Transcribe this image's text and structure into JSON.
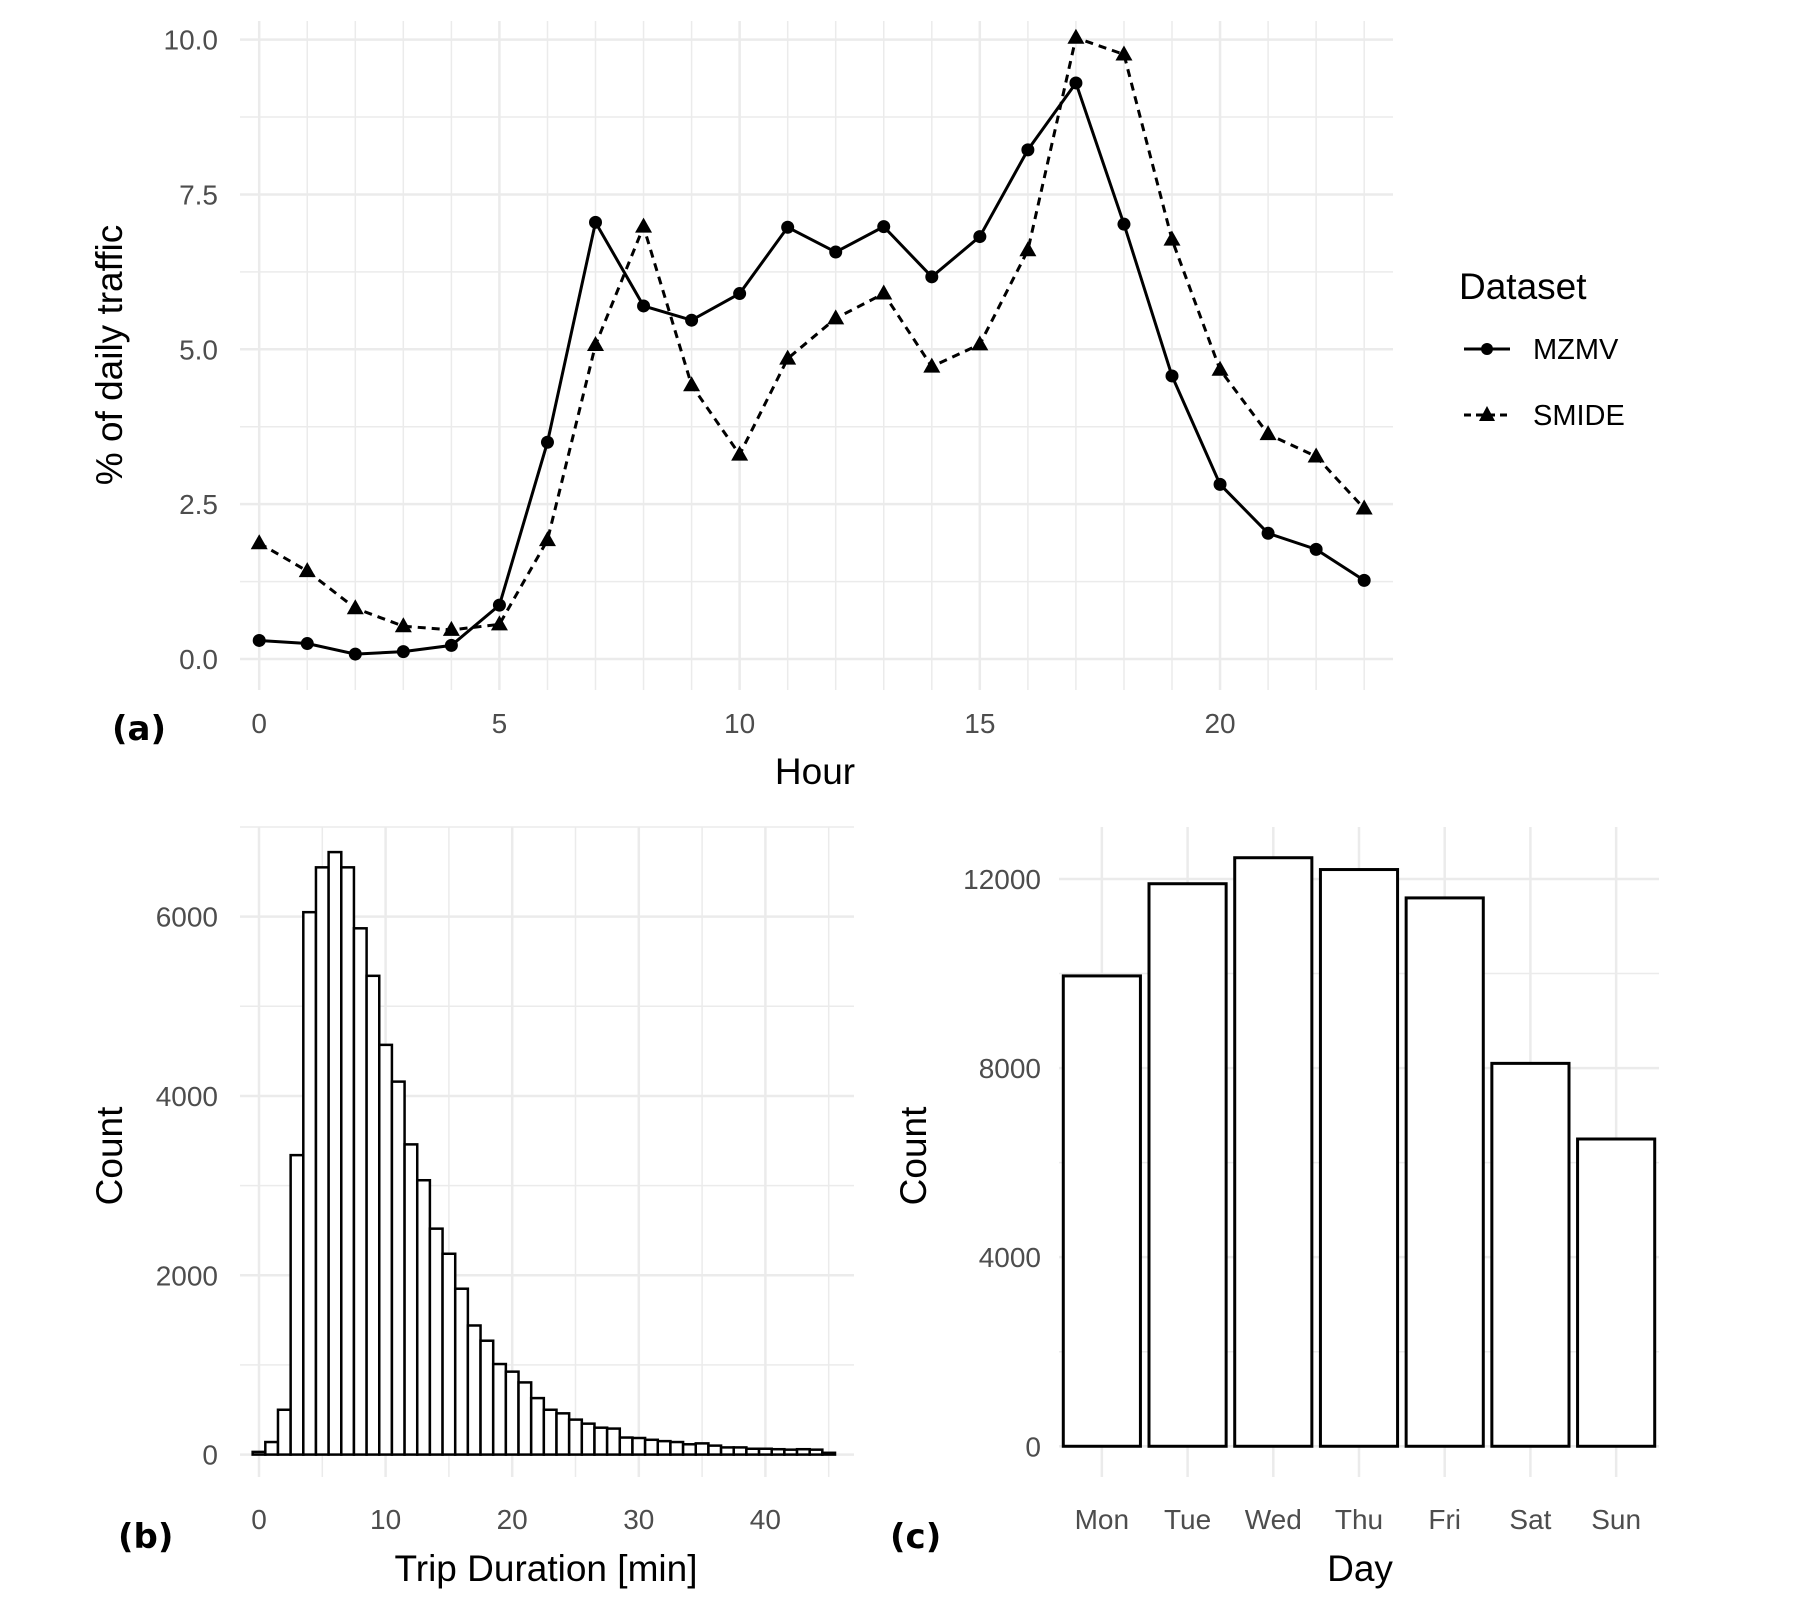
{
  "chart_data": [
    {
      "panel_label": "(a)",
      "type": "line",
      "xlabel": "Hour",
      "ylabel": "% of daily traffic",
      "x": [
        0,
        1,
        2,
        3,
        4,
        5,
        6,
        7,
        8,
        9,
        10,
        11,
        12,
        13,
        14,
        15,
        16,
        17,
        18,
        19,
        20,
        21,
        22,
        23
      ],
      "xlim": [
        -0.4,
        23.6
      ],
      "ylim": [
        -0.5,
        10.3
      ],
      "xticks": [
        "0",
        "5",
        "10",
        "15",
        "20"
      ],
      "xtick_values": [
        0,
        5,
        10,
        15,
        20
      ],
      "yticks": [
        "0.0",
        "2.5",
        "5.0",
        "7.5",
        "10.0"
      ],
      "ytick_values": [
        0,
        2.5,
        5,
        7.5,
        10
      ],
      "grid": true,
      "legend": {
        "title": "Dataset",
        "placement": "right"
      },
      "series": [
        {
          "name": "MZMV",
          "line": "solid",
          "marker": "circle",
          "values": [
            0.3,
            0.25,
            0.08,
            0.12,
            0.22,
            0.87,
            3.5,
            7.05,
            5.7,
            5.47,
            5.9,
            6.97,
            6.57,
            6.98,
            6.17,
            6.82,
            8.22,
            9.3,
            7.02,
            4.57,
            2.82,
            2.03,
            1.77,
            1.27
          ]
        },
        {
          "name": "SMIDE",
          "line": "dashed",
          "marker": "triangle",
          "values": [
            1.87,
            1.42,
            0.82,
            0.53,
            0.47,
            0.56,
            1.92,
            5.07,
            6.98,
            4.42,
            3.3,
            4.85,
            5.5,
            5.9,
            4.72,
            5.08,
            6.6,
            10.03,
            9.76,
            6.77,
            4.67,
            3.63,
            3.27,
            2.43
          ]
        }
      ]
    },
    {
      "panel_label": "(b)",
      "type": "bar",
      "subtype": "histogram",
      "xlabel": "Trip Duration [min]",
      "ylabel": "Count",
      "bin_width": 1,
      "bin_centers": [
        0,
        1,
        2,
        3,
        4,
        5,
        6,
        7,
        8,
        9,
        10,
        11,
        12,
        13,
        14,
        15,
        16,
        17,
        18,
        19,
        20,
        21,
        22,
        23,
        24,
        25,
        26,
        27,
        28,
        29,
        30,
        31,
        32,
        33,
        34,
        35,
        36,
        37,
        38,
        39,
        40,
        41,
        42,
        43,
        44,
        45
      ],
      "values": [
        30,
        140,
        500,
        3340,
        6050,
        6550,
        6720,
        6550,
        5870,
        5340,
        4570,
        4160,
        3460,
        3060,
        2520,
        2240,
        1850,
        1440,
        1270,
        1010,
        925,
        805,
        630,
        500,
        460,
        390,
        345,
        300,
        290,
        190,
        185,
        165,
        150,
        140,
        115,
        125,
        100,
        80,
        80,
        65,
        65,
        60,
        55,
        60,
        55,
        20
      ],
      "xlim": [
        -1.5,
        47
      ],
      "ylim": [
        -250,
        7000
      ],
      "xticks": [
        "0",
        "10",
        "20",
        "30",
        "40"
      ],
      "xtick_values": [
        0,
        10,
        20,
        30,
        40
      ],
      "yticks": [
        "0",
        "2000",
        "4000",
        "6000"
      ],
      "ytick_values": [
        0,
        2000,
        4000,
        6000
      ],
      "grid": true
    },
    {
      "panel_label": "(c)",
      "type": "bar",
      "xlabel": "Day",
      "ylabel": "Count",
      "categories": [
        "Mon",
        "Tue",
        "Wed",
        "Thu",
        "Fri",
        "Sat",
        "Sun"
      ],
      "values": [
        9950,
        11900,
        12450,
        12200,
        11600,
        8100,
        6500
      ],
      "ylim": [
        -650,
        13100
      ],
      "yticks": [
        "0",
        "4000",
        "8000",
        "12000"
      ],
      "ytick_values": [
        0,
        4000,
        8000,
        12000
      ],
      "grid": true
    }
  ]
}
